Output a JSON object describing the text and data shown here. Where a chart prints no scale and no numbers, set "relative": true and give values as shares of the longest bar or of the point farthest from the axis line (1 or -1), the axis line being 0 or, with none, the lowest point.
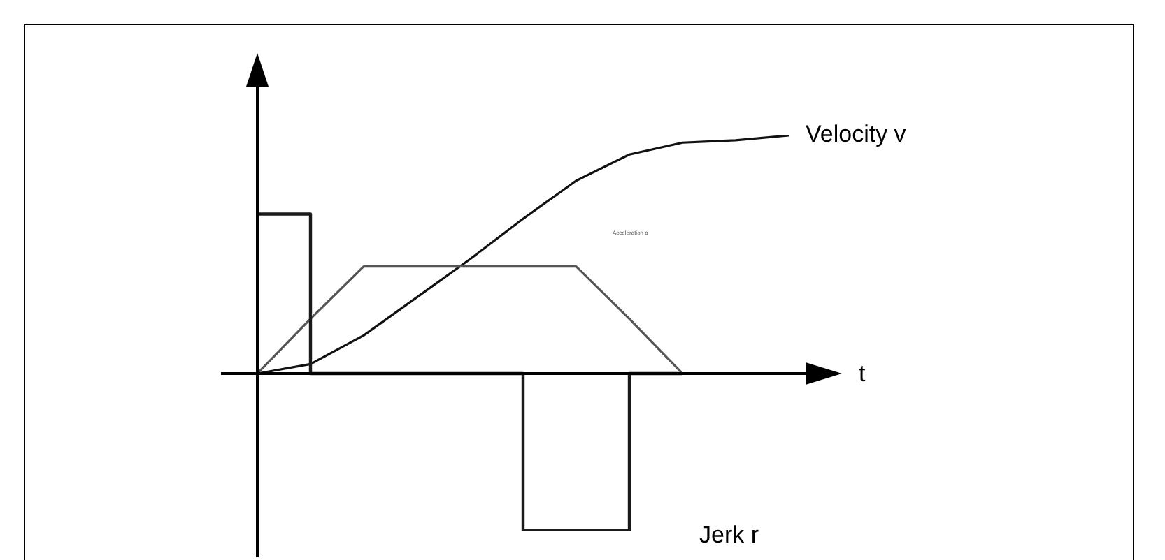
{
  "chart_data": {
    "type": "line",
    "relative": true,
    "xlabel": "t",
    "categories": [
      null,
      null,
      null,
      null,
      null,
      null,
      null,
      null,
      null,
      null,
      null
    ],
    "series": [
      {
        "name": "Jerk r",
        "type": "step",
        "color": "#1a1a1a",
        "values": [
          0.67,
          0.67,
          0,
          0,
          0,
          0,
          -0.66,
          -0.66,
          0,
          null,
          null
        ]
      },
      {
        "name": "Acceleration a",
        "color": "#555555",
        "values": [
          0,
          0.23,
          0.45,
          0.45,
          0.45,
          0.45,
          0.45,
          0.23,
          0,
          null,
          null
        ]
      },
      {
        "name": "Velocity v",
        "color": "#111111",
        "values": [
          0,
          0.04,
          0.16,
          0.32,
          0.48,
          0.65,
          0.81,
          0.92,
          0.97,
          0.98,
          1
        ]
      }
    ],
    "legend": false,
    "grid": false,
    "tick_labels": false
  }
}
